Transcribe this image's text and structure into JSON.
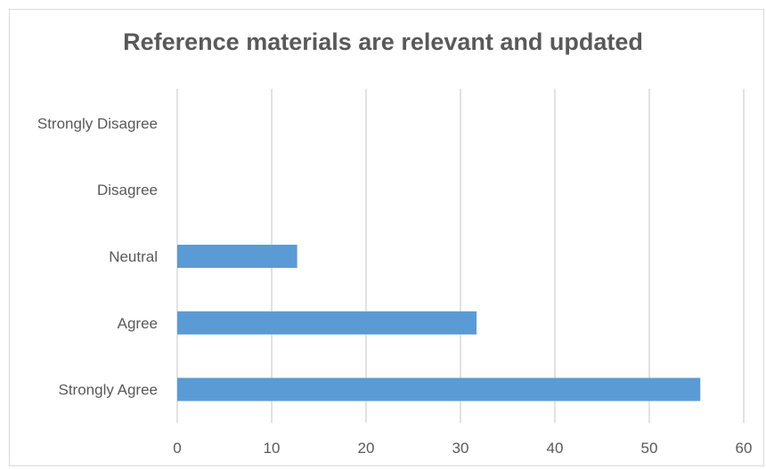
{
  "chart_data": {
    "type": "bar",
    "orientation": "horizontal",
    "title": "Reference materials are relevant and updated",
    "categories": [
      "Strongly Disagree",
      "Disagree",
      "Neutral",
      "Agree",
      "Strongly Agree"
    ],
    "values": [
      0,
      0,
      12.7,
      31.7,
      55.4
    ],
    "xlim": [
      0,
      60
    ],
    "xticks": [
      "0",
      "10",
      "20",
      "30",
      "40",
      "50",
      "60"
    ],
    "xlabel": "",
    "ylabel": "",
    "grid": "vertical",
    "legend": "none",
    "bar_color": "#5b9bd5",
    "grid_color": "#d9d9d9"
  }
}
